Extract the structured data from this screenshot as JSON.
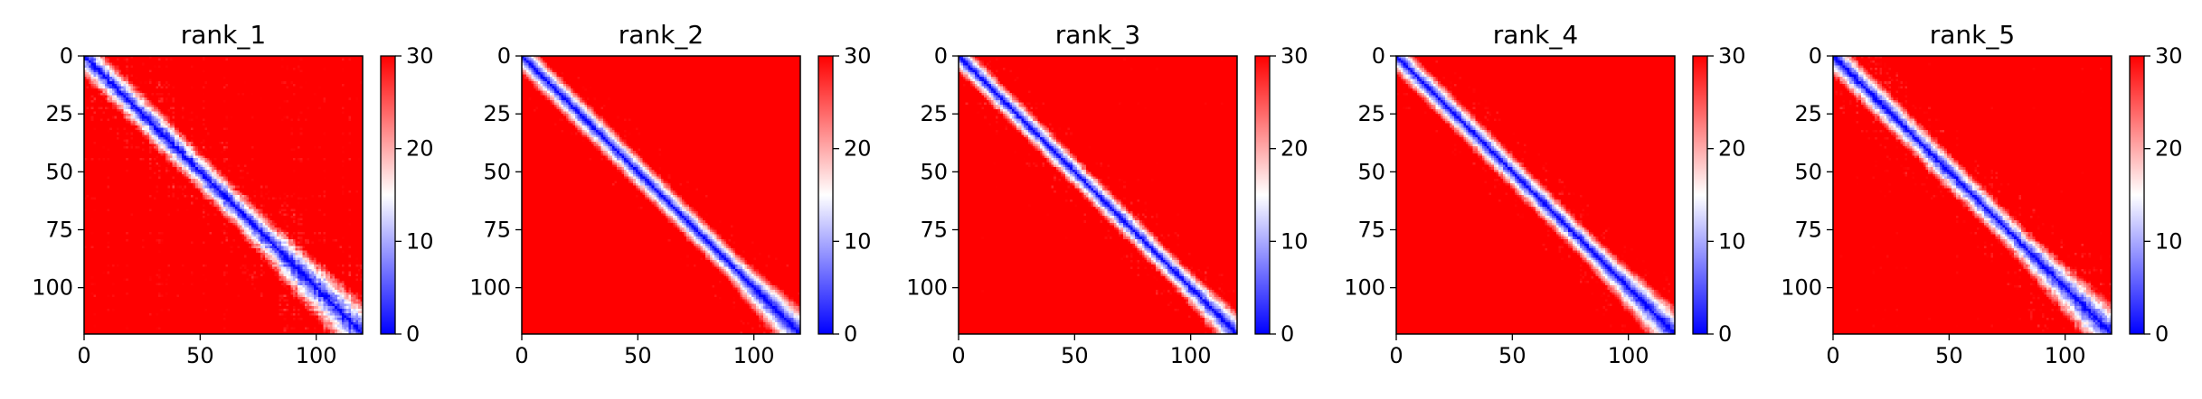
{
  "chart_data": [
    {
      "type": "heatmap",
      "title": "rank_1",
      "n": 120,
      "xlim": [
        0,
        120
      ],
      "ylim": [
        120,
        0
      ],
      "x_ticks": [
        0,
        50,
        100
      ],
      "y_ticks": [
        0,
        25,
        50,
        75,
        100
      ],
      "colorbar": {
        "vmin": 0,
        "vmax": 30,
        "ticks": [
          0,
          10,
          20,
          30
        ],
        "colormap": "bwr"
      },
      "band_width": 7,
      "band_widen_start": 70,
      "band_widen_amount": 5,
      "noise": 2.4,
      "seed": 11
    },
    {
      "type": "heatmap",
      "title": "rank_2",
      "n": 120,
      "xlim": [
        0,
        120
      ],
      "ylim": [
        120,
        0
      ],
      "x_ticks": [
        0,
        50,
        100
      ],
      "y_ticks": [
        0,
        25,
        50,
        75,
        100
      ],
      "colorbar": {
        "vmin": 0,
        "vmax": 30,
        "ticks": [
          0,
          10,
          20,
          30
        ],
        "colormap": "bwr"
      },
      "band_width": 6,
      "band_widen_start": 90,
      "band_widen_amount": 4,
      "noise": 1.4,
      "seed": 23
    },
    {
      "type": "heatmap",
      "title": "rank_3",
      "n": 120,
      "xlim": [
        0,
        120
      ],
      "ylim": [
        120,
        0
      ],
      "x_ticks": [
        0,
        50,
        100
      ],
      "y_ticks": [
        0,
        25,
        50,
        75,
        100
      ],
      "colorbar": {
        "vmin": 0,
        "vmax": 30,
        "ticks": [
          0,
          10,
          20,
          30
        ],
        "colormap": "bwr"
      },
      "band_width": 5.5,
      "band_widen_start": 95,
      "band_widen_amount": 3,
      "noise": 1.8,
      "seed": 37
    },
    {
      "type": "heatmap",
      "title": "rank_4",
      "n": 120,
      "xlim": [
        0,
        120
      ],
      "ylim": [
        120,
        0
      ],
      "x_ticks": [
        0,
        50,
        100
      ],
      "y_ticks": [
        0,
        25,
        50,
        75,
        100
      ],
      "colorbar": {
        "vmin": 0,
        "vmax": 30,
        "ticks": [
          0,
          10,
          20,
          30
        ],
        "colormap": "bwr"
      },
      "band_width": 6,
      "band_widen_start": 85,
      "band_widen_amount": 4,
      "noise": 1.6,
      "seed": 41
    },
    {
      "type": "heatmap",
      "title": "rank_5",
      "n": 120,
      "xlim": [
        0,
        120
      ],
      "ylim": [
        120,
        0
      ],
      "x_ticks": [
        0,
        50,
        100
      ],
      "y_ticks": [
        0,
        25,
        50,
        75,
        100
      ],
      "colorbar": {
        "vmin": 0,
        "vmax": 30,
        "ticks": [
          0,
          10,
          20,
          30
        ],
        "colormap": "bwr"
      },
      "band_width": 6.5,
      "band_widen_start": 80,
      "band_widen_amount": 5,
      "noise": 2.0,
      "seed": 53
    }
  ]
}
